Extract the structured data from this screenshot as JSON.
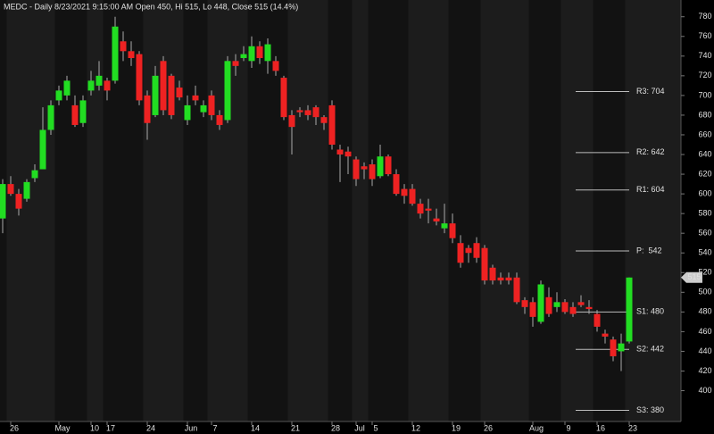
{
  "chart_data": {
    "type": "candlestick",
    "title": "MEDC - Daily 8/23/2021 9:15:00 AM Open 450, Hi 515, Lo 448, Close 515 (14.4%)",
    "categories": [
      null,
      "26",
      null,
      null,
      null,
      null,
      null,
      "May",
      null,
      null,
      null,
      "10",
      null,
      "17",
      null,
      null,
      null,
      null,
      "24",
      null,
      null,
      null,
      null,
      "Jun",
      null,
      null,
      "7",
      null,
      null,
      null,
      null,
      "14",
      null,
      null,
      null,
      null,
      "21",
      null,
      null,
      null,
      null,
      "28",
      null,
      null,
      "Jul",
      null,
      "5",
      null,
      null,
      null,
      null,
      "12",
      null,
      null,
      null,
      null,
      "19",
      null,
      null,
      null,
      "26",
      null,
      null,
      null,
      null,
      null,
      "Aug",
      null,
      null,
      null,
      "9",
      null,
      null,
      null,
      "16",
      null,
      null,
      null,
      "23"
    ],
    "open": [
      575,
      610,
      600,
      595,
      616,
      625,
      665,
      695,
      700,
      690,
      672,
      705,
      710,
      715,
      715,
      755,
      745,
      742,
      700,
      680,
      735,
      720,
      708,
      675,
      700,
      683,
      700,
      680,
      675,
      735,
      738,
      735,
      750,
      735,
      735,
      718,
      680,
      685,
      685,
      688,
      678,
      690,
      645,
      643,
      635,
      628,
      630,
      618,
      638,
      620,
      605,
      605,
      590,
      585,
      575,
      565,
      570,
      550,
      545,
      550,
      545,
      525,
      515,
      515,
      515,
      492,
      490,
      470,
      495,
      485,
      490,
      485,
      490,
      485,
      478,
      458,
      452,
      440,
      450
    ],
    "high": [
      615,
      618,
      605,
      615,
      630,
      688,
      695,
      710,
      720,
      700,
      700,
      725,
      735,
      718,
      780,
      765,
      755,
      745,
      705,
      730,
      740,
      722,
      715,
      700,
      710,
      695,
      705,
      685,
      740,
      742,
      750,
      760,
      755,
      758,
      740,
      720,
      685,
      688,
      690,
      690,
      680,
      695,
      650,
      648,
      638,
      632,
      635,
      650,
      640,
      625,
      610,
      610,
      595,
      595,
      585,
      590,
      580,
      558,
      548,
      556,
      548,
      528,
      520,
      520,
      520,
      495,
      495,
      512,
      505,
      500,
      493,
      490,
      497,
      492,
      482,
      462,
      455,
      458,
      515
    ],
    "low": [
      560,
      598,
      578,
      592,
      612,
      625,
      660,
      690,
      695,
      668,
      668,
      700,
      705,
      695,
      712,
      735,
      730,
      690,
      655,
      678,
      680,
      676,
      695,
      670,
      690,
      678,
      675,
      665,
      672,
      720,
      735,
      728,
      732,
      722,
      720,
      675,
      640,
      678,
      675,
      670,
      665,
      645,
      612,
      620,
      608,
      615,
      608,
      616,
      618,
      598,
      590,
      588,
      575,
      570,
      568,
      560,
      550,
      525,
      530,
      530,
      508,
      508,
      508,
      508,
      488,
      478,
      465,
      468,
      475,
      480,
      478,
      475,
      485,
      478,
      460,
      448,
      430,
      420,
      448
    ],
    "close": [
      610,
      600,
      585,
      612,
      624,
      665,
      690,
      705,
      715,
      670,
      695,
      715,
      720,
      705,
      770,
      745,
      738,
      695,
      672,
      720,
      685,
      680,
      698,
      690,
      695,
      690,
      680,
      670,
      735,
      730,
      742,
      750,
      738,
      752,
      725,
      678,
      668,
      683,
      680,
      678,
      672,
      650,
      640,
      638,
      615,
      625,
      615,
      638,
      620,
      600,
      598,
      590,
      580,
      583,
      572,
      570,
      555,
      530,
      540,
      535,
      512,
      512,
      512,
      512,
      490,
      485,
      475,
      508,
      478,
      490,
      480,
      478,
      487,
      483,
      465,
      455,
      435,
      448,
      515
    ],
    "up_color": "#22dd22",
    "down_color": "#ee2222",
    "ylim": [
      356,
      797
    ],
    "yticks": [
      400,
      420,
      440,
      460,
      480,
      500,
      520,
      540,
      560,
      580,
      600,
      620,
      640,
      660,
      680,
      700,
      720,
      740,
      760,
      780
    ],
    "last_price": 515,
    "pivots": [
      {
        "label": "R3: 704",
        "value": 704,
        "color": "#ee2222"
      },
      {
        "label": "R2: 642",
        "value": 642,
        "color": "#ee2222"
      },
      {
        "label": "R1: 604",
        "value": 604,
        "color": "#ee2222"
      },
      {
        "label": "P:  542",
        "value": 542,
        "color": "#ffffff"
      },
      {
        "label": "S1: 480",
        "value": 480,
        "color": "#22dd22"
      },
      {
        "label": "S2: 442",
        "value": 442,
        "color": "#22dd22"
      },
      {
        "label": "S3: 380",
        "value": 380,
        "color": "#22dd22"
      }
    ]
  }
}
